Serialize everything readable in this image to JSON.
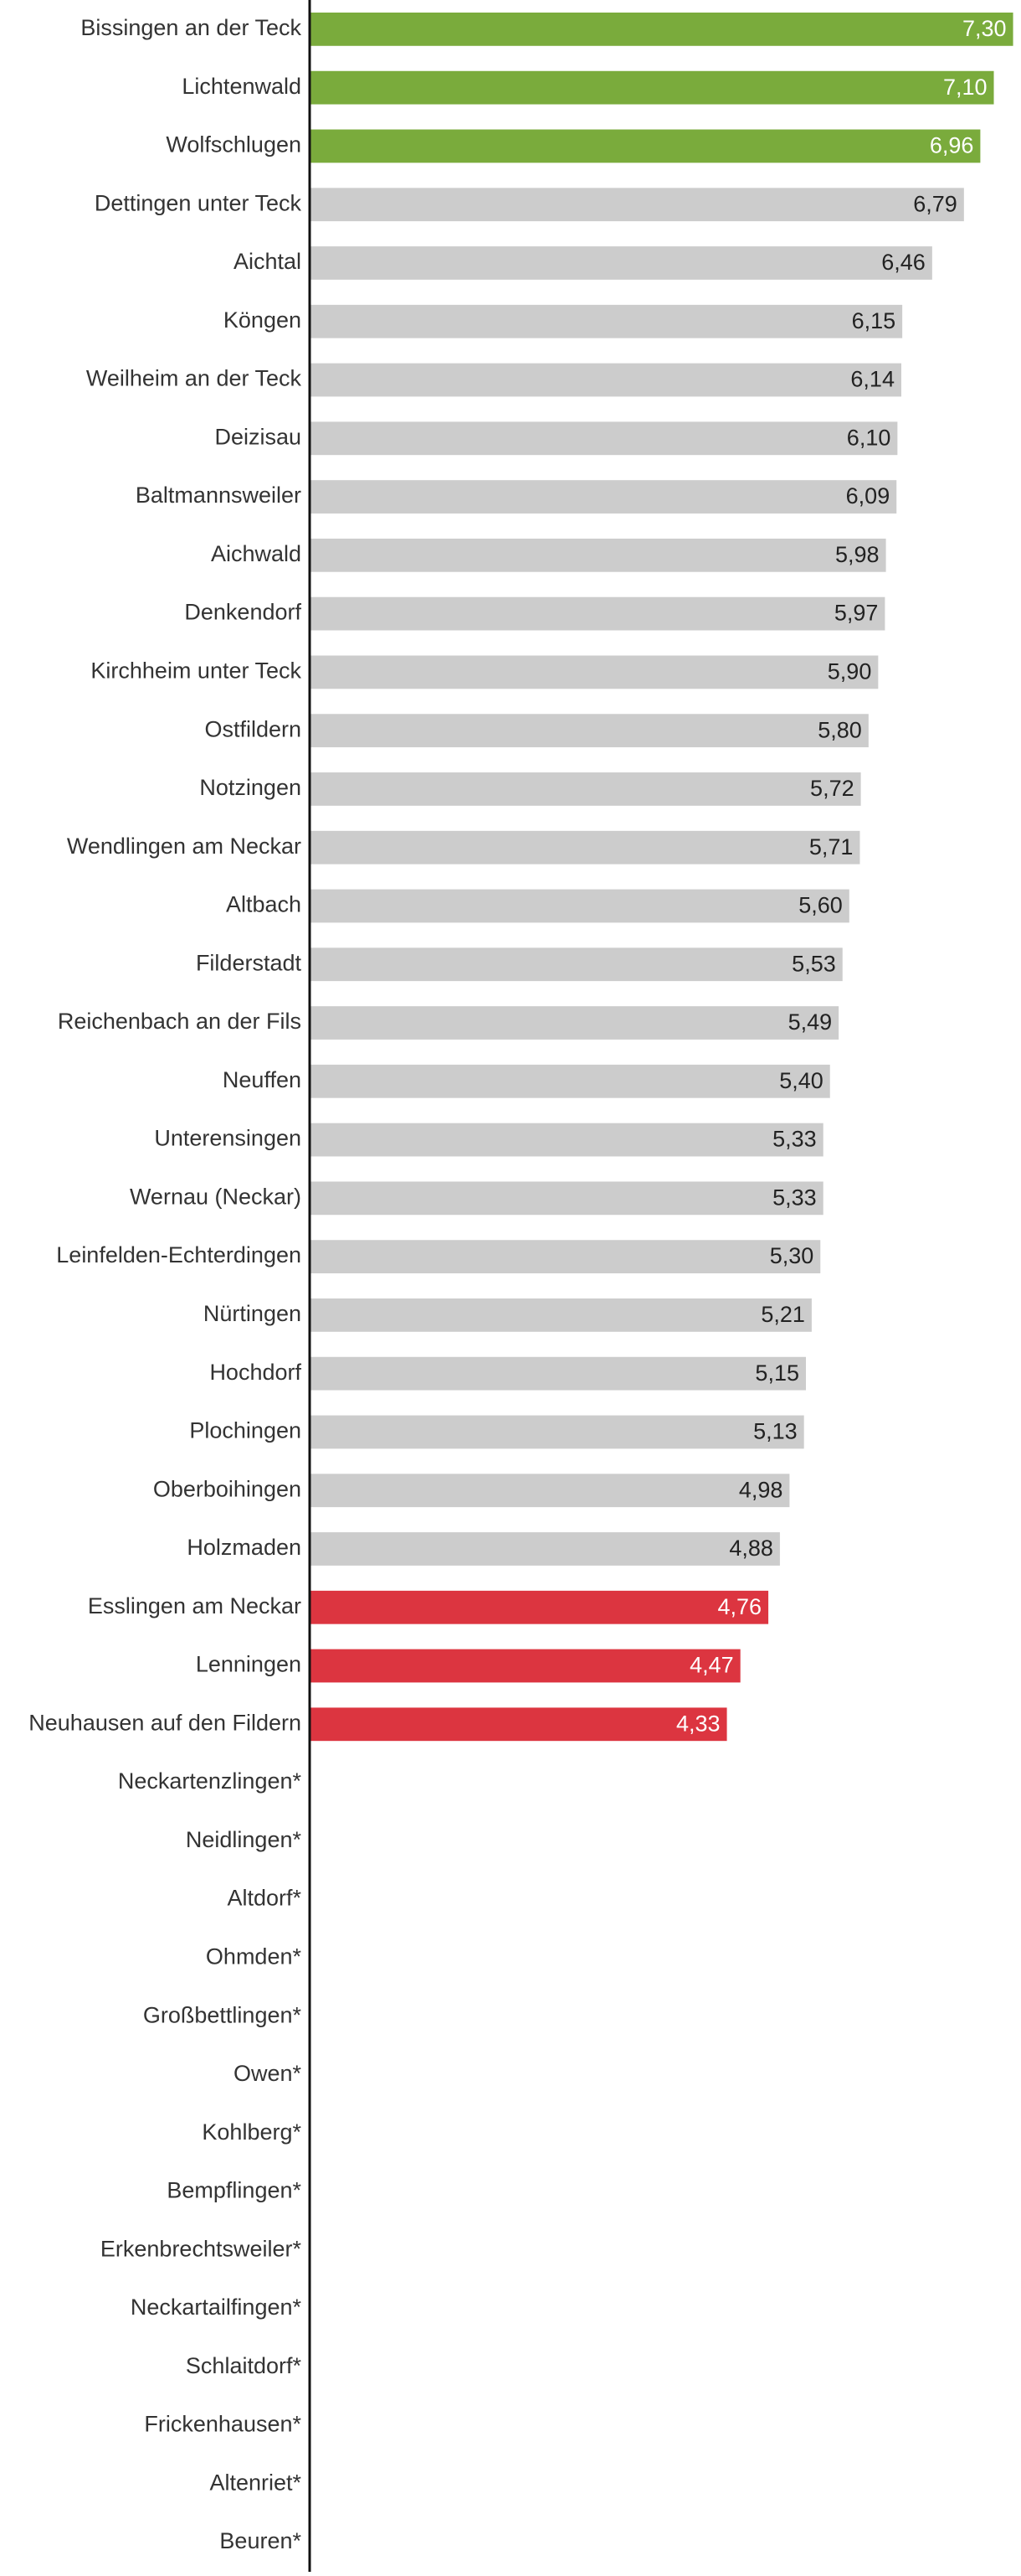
{
  "chart_data": {
    "type": "bar",
    "orientation": "horizontal",
    "categories": [
      "Bissingen an der Teck",
      "Lichtenwald",
      "Wolfschlugen",
      "Dettingen unter Teck",
      "Aichtal",
      "Köngen",
      "Weilheim an der Teck",
      "Deizisau",
      "Baltmannsweiler",
      "Aichwald",
      "Denkendorf",
      "Kirchheim unter Teck",
      "Ostfildern",
      "Notzingen",
      "Wendlingen am Neckar",
      "Altbach",
      "Filderstadt",
      "Reichenbach an der Fils",
      "Neuffen",
      "Unterensingen",
      "Wernau (Neckar)",
      "Leinfelden-Echterdingen",
      "Nürtingen",
      "Hochdorf",
      "Plochingen",
      "Oberboihingen",
      "Holzmaden",
      "Esslingen am Neckar",
      "Lenningen",
      "Neuhausen auf den Fildern",
      "Neckartenzlingen*",
      "Neidlingen*",
      "Altdorf*",
      "Ohmden*",
      "Großbettlingen*",
      "Owen*",
      "Kohlberg*",
      "Bempflingen*",
      "Erkenbrechtsweiler*",
      "Neckartailfingen*",
      "Schlaitdorf*",
      "Frickenhausen*",
      "Altenriet*",
      "Beuren*"
    ],
    "values": [
      7.3,
      7.1,
      6.96,
      6.79,
      6.46,
      6.15,
      6.14,
      6.1,
      6.09,
      5.98,
      5.97,
      5.9,
      5.8,
      5.72,
      5.71,
      5.6,
      5.53,
      5.49,
      5.4,
      5.33,
      5.33,
      5.3,
      5.21,
      5.15,
      5.13,
      4.98,
      4.88,
      4.76,
      4.47,
      4.33,
      null,
      null,
      null,
      null,
      null,
      null,
      null,
      null,
      null,
      null,
      null,
      null,
      null,
      null
    ],
    "value_labels": [
      "7,30",
      "7,10",
      "6,96",
      "6,79",
      "6,46",
      "6,15",
      "6,14",
      "6,10",
      "6,09",
      "5,98",
      "5,97",
      "5,90",
      "5,80",
      "5,72",
      "5,71",
      "5,60",
      "5,53",
      "5,49",
      "5,40",
      "5,33",
      "5,33",
      "5,30",
      "5,21",
      "5,15",
      "5,13",
      "4,98",
      "4,88",
      "4,76",
      "4,47",
      "4,33",
      null,
      null,
      null,
      null,
      null,
      null,
      null,
      null,
      null,
      null,
      null,
      null,
      null,
      null
    ],
    "colors": [
      "#7aab3c",
      "#7aab3c",
      "#7aab3c",
      "#cccccc",
      "#cccccc",
      "#cccccc",
      "#cccccc",
      "#cccccc",
      "#cccccc",
      "#cccccc",
      "#cccccc",
      "#cccccc",
      "#cccccc",
      "#cccccc",
      "#cccccc",
      "#cccccc",
      "#cccccc",
      "#cccccc",
      "#cccccc",
      "#cccccc",
      "#cccccc",
      "#cccccc",
      "#cccccc",
      "#cccccc",
      "#cccccc",
      "#cccccc",
      "#cccccc",
      "#dc3540",
      "#dc3540",
      "#dc3540",
      null,
      null,
      null,
      null,
      null,
      null,
      null,
      null,
      null,
      null,
      null,
      null,
      null,
      null
    ],
    "value_label_colors": [
      "#ffffff",
      "#ffffff",
      "#ffffff",
      "#222222",
      "#222222",
      "#222222",
      "#222222",
      "#222222",
      "#222222",
      "#222222",
      "#222222",
      "#222222",
      "#222222",
      "#222222",
      "#222222",
      "#222222",
      "#222222",
      "#222222",
      "#222222",
      "#222222",
      "#222222",
      "#222222",
      "#222222",
      "#222222",
      "#222222",
      "#222222",
      "#222222",
      "#ffffff",
      "#ffffff",
      "#ffffff",
      null,
      null,
      null,
      null,
      null,
      null,
      null,
      null,
      null,
      null,
      null,
      null,
      null,
      null
    ],
    "xlim": [
      0,
      7.33
    ]
  }
}
